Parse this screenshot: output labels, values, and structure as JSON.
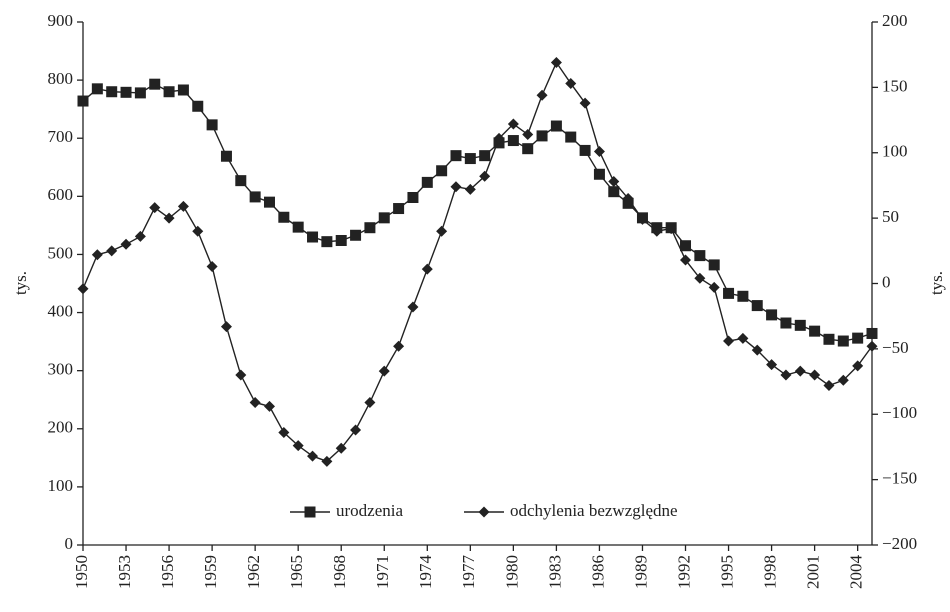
{
  "chart_data": {
    "type": "line",
    "y_label": "tys.",
    "y2_label": "tys.",
    "x": [
      1950,
      1951,
      1952,
      1953,
      1954,
      1955,
      1956,
      1957,
      1958,
      1959,
      1960,
      1961,
      1962,
      1963,
      1964,
      1965,
      1966,
      1967,
      1968,
      1969,
      1970,
      1971,
      1972,
      1973,
      1974,
      1975,
      1976,
      1977,
      1978,
      1979,
      1980,
      1981,
      1982,
      1983,
      1984,
      1985,
      1986,
      1987,
      1988,
      1989,
      1990,
      1991,
      1992,
      1993,
      1994,
      1995,
      1996,
      1997,
      1998,
      1999,
      2000,
      2001,
      2002,
      2003,
      2004,
      2005
    ],
    "xlim": [
      1950,
      2005
    ],
    "xticks": [
      1950,
      1953,
      1956,
      1959,
      1962,
      1965,
      1968,
      1971,
      1974,
      1977,
      1980,
      1983,
      1986,
      1989,
      1992,
      1995,
      1998,
      2001,
      2004
    ],
    "ylim": [
      0,
      900
    ],
    "yticks": [
      0,
      100,
      200,
      300,
      400,
      500,
      600,
      700,
      800,
      900
    ],
    "y2lim": [
      -200,
      200
    ],
    "y2ticks": [
      {
        "value": -200,
        "label": "−200"
      },
      {
        "value": -150,
        "label": "−150"
      },
      {
        "value": -100,
        "label": "−100"
      },
      {
        "value": -50,
        "label": "−50"
      },
      0,
      50,
      100,
      150,
      200
    ],
    "series": [
      {
        "name": "urodzenia",
        "color": "#222222",
        "marker": "square",
        "values": [
          764,
          785,
          780,
          779,
          778,
          793,
          780,
          783,
          755,
          723,
          669,
          627,
          599,
          590,
          564,
          547,
          530,
          522,
          524,
          533,
          546,
          563,
          579,
          598,
          624,
          644,
          670,
          665,
          670,
          692,
          696,
          682,
          704,
          721,
          702,
          679,
          638,
          608,
          588,
          563,
          546,
          546,
          515,
          498,
          482,
          433,
          428,
          412,
          396,
          382,
          378,
          368,
          354,
          351,
          356,
          364
        ]
      },
      {
        "name": "odchylenia bezwzględne",
        "color": "#222222",
        "marker": "diamond",
        "axis": "y2",
        "values": [
          -4,
          22,
          25,
          30,
          36,
          58,
          50,
          59,
          40,
          13,
          -33,
          -70,
          -91,
          -94,
          -114,
          -124,
          -132,
          -136,
          -126,
          -112,
          -91,
          -67,
          -48,
          -18,
          11,
          40,
          74,
          72,
          82,
          111,
          122,
          114,
          144,
          169,
          153,
          138,
          101,
          78,
          65,
          49,
          40,
          42,
          18,
          4,
          -3,
          -44,
          -42,
          -51,
          -62,
          -70,
          -67,
          -70,
          -78,
          -74,
          -63,
          -48
        ]
      }
    ]
  }
}
